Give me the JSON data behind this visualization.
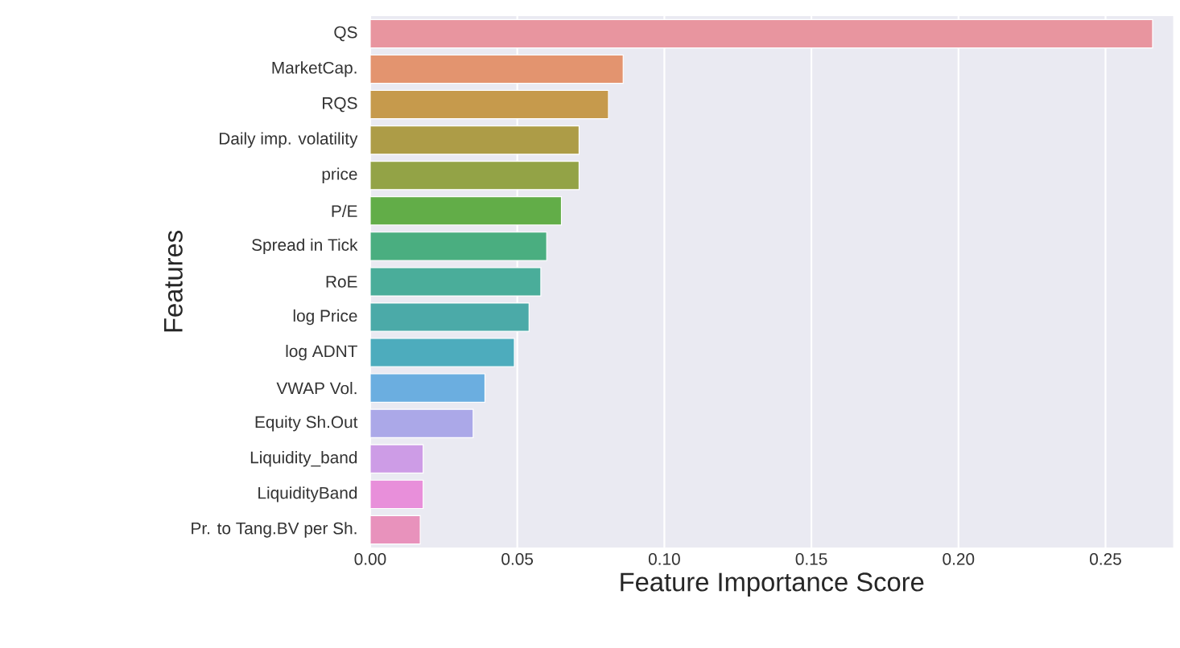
{
  "chart_data": {
    "type": "bar",
    "orientation": "horizontal",
    "xlabel": "Feature Importance Score",
    "ylabel": "Features",
    "categories": [
      "QS",
      "MarketCap.",
      "RQS",
      "Daily imp. volatility",
      "price",
      "P/E",
      "Spread in Tick",
      "RoE",
      "log Price",
      "log ADNT",
      "VWAP Vol.",
      "Equity Sh.Out",
      "Liquidity_band",
      "LiquidityBand",
      "Pr. to Tang.BV per Sh."
    ],
    "values": [
      0.266,
      0.086,
      0.081,
      0.071,
      0.071,
      0.065,
      0.06,
      0.058,
      0.054,
      0.049,
      0.039,
      0.035,
      0.018,
      0.018,
      0.017
    ],
    "colors": [
      "#e8959f",
      "#e3946f",
      "#c69a4c",
      "#ad9c47",
      "#93a346",
      "#62ad48",
      "#4aae80",
      "#4aad9a",
      "#4baaa8",
      "#4dacbd",
      "#6baee0",
      "#aba8e8",
      "#cd9ce6",
      "#e88fda",
      "#e892bc"
    ],
    "xlim": [
      0,
      0.273
    ],
    "xticks": [
      {
        "value": 0,
        "label": "0.00"
      },
      0.05,
      {
        "value": 0.1,
        "label": "0.10"
      },
      0.15,
      {
        "value": 0.2,
        "label": "0.20"
      },
      0.25
    ],
    "grid": "x"
  }
}
